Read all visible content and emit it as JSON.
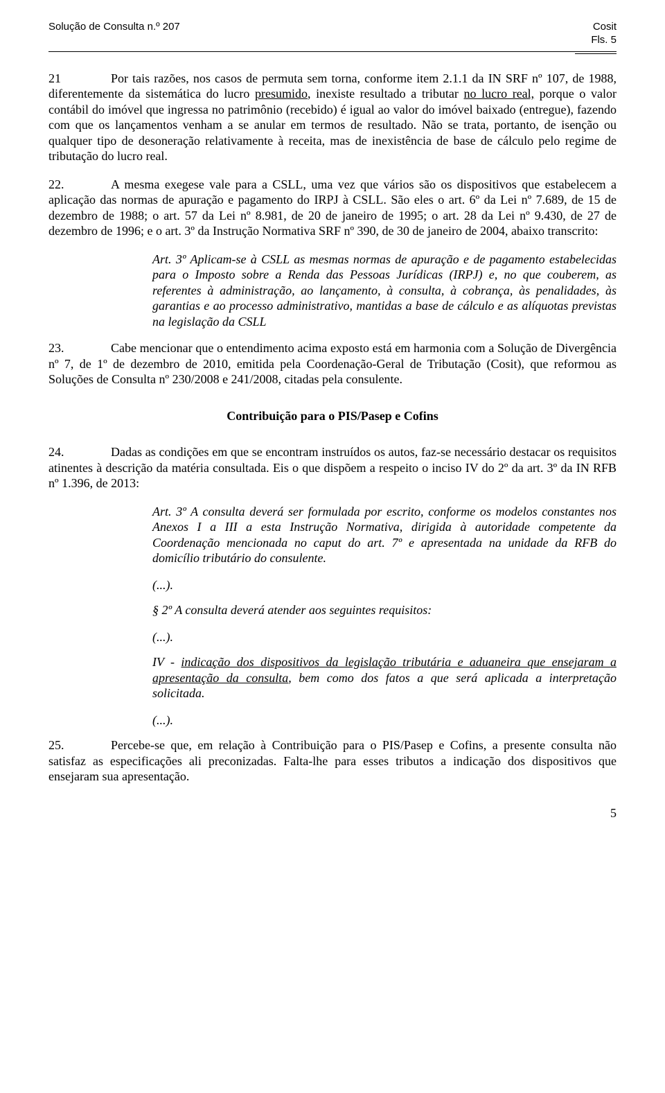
{
  "header": {
    "left_title": "Solução de Consulta n.º 207",
    "right_title": "Cosit",
    "right_sub": "Fls. 5"
  },
  "paragraphs": {
    "p21_num": "21",
    "p21_a": "Por tais razões, nos casos de permuta sem torna, conforme item 2.1.1 da IN SRF nº 107, de 1988, diferentemente da sistemática do lucro ",
    "p21_u1": "presumido",
    "p21_b": ", inexiste resultado a tributar ",
    "p21_u2": "no lucro real,",
    "p21_c": " porque o valor contábil do imóvel que ingressa no patrimônio (recebido) é igual ao valor do imóvel baixado (entregue), fazendo com que os lançamentos venham a se anular em termos de resultado. Não se trata, portanto, de isenção ou qualquer tipo de desoneração relativamente à receita, mas de inexistência de base de cálculo pelo regime de tributação do lucro real.",
    "p22_num": "22.",
    "p22": "A mesma exegese vale para a CSLL, uma vez que vários são os dispositivos que estabelecem a aplicação das normas de apuração e pagamento do IRPJ à CSLL. São eles o art. 6º da Lei nº 7.689, de 15 de dezembro de 1988; o art. 57 da Lei nº 8.981, de 20 de janeiro de 1995; o art. 28 da Lei nº 9.430, de 27 de dezembro de 1996; e o art. 3º da Instrução Normativa SRF nº 390, de 30 de janeiro de 2004, abaixo transcrito:",
    "quote1": "Art. 3º Aplicam-se à CSLL as mesmas normas de apuração e de pagamento estabelecidas para o Imposto sobre a Renda das Pessoas Jurídicas (IRPJ) e, no que couberem, as referentes à administração, ao lançamento, à consulta, à cobrança, às penalidades, às garantias e ao processo administrativo, mantidas a base de cálculo e as alíquotas previstas na legislação da CSLL",
    "p23_num": "23.",
    "p23": "Cabe mencionar que o entendimento acima exposto está em harmonia com a Solução de Divergência nº 7, de 1º de dezembro de 2010, emitida pela Coordenação-Geral de Tributação (Cosit), que reformou as Soluções de Consulta nº 230/2008 e 241/2008, citadas pela consulente.",
    "section_title": "Contribuição para o PIS/Pasep e Cofins",
    "p24_num": "24.",
    "p24": "Dadas as condições em que se encontram instruídos os autos, faz-se necessário destacar os requisitos atinentes à descrição da matéria consultada. Eis o que dispõem a respeito o inciso IV do 2º da art. 3º da IN RFB nº 1.396, de 2013:",
    "quote2": "Art. 3º A consulta deverá ser formulada por escrito, conforme os modelos constantes nos Anexos I a III a esta Instrução Normativa, dirigida à autoridade competente da Coordenação mencionada no caput do art. 7º e apresentada na unidade da RFB do domicílio tributário do consulente.",
    "ellipsis": "(...).",
    "quote3": "§ 2º A consulta deverá atender aos seguintes requisitos:",
    "quote4_a": "IV - ",
    "quote4_u": "indicação dos dispositivos da legislação tributária e aduaneira que ensejaram a apresentação da consulta",
    "quote4_b": ", bem como dos fatos a que será aplicada a interpretação solicitada.",
    "p25_num": "25.",
    "p25": "Percebe-se que, em relação à Contribuição para o PIS/Pasep e Cofins, a presente consulta não satisfaz as especificações ali preconizadas. Falta-lhe para esses tributos a indicação dos dispositivos que ensejaram sua apresentação."
  },
  "page_number": "5"
}
